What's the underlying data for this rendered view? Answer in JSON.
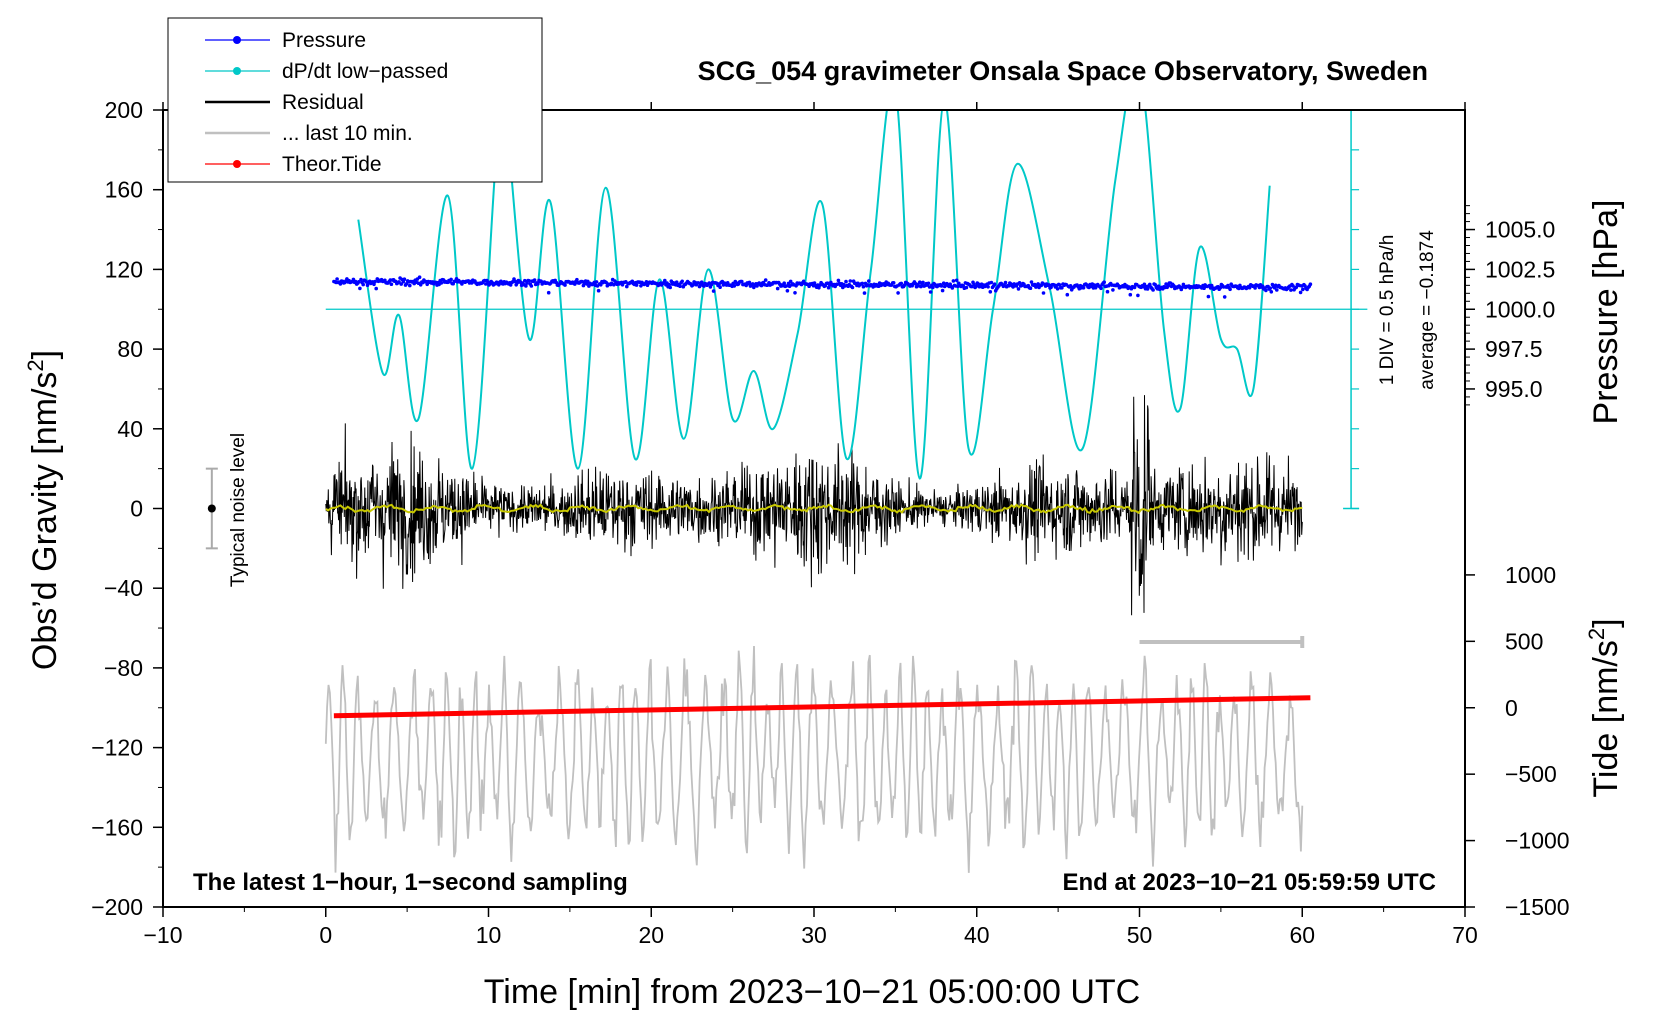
{
  "chart_data": {
    "type": "line",
    "title": "SCG_054 gravimeter Onsala Space Observatory, Sweden",
    "xlabel": "Time [min] from 2023−10−21 05:00:00 UTC",
    "ylabel_left": "Obs’d Gravity [nm/s",
    "ylabel_left_sup": "2",
    "ylabel_left_close": "]",
    "ylabel_right_top": "Pressure [hPa]",
    "ylabel_right_bottom": "Tide [nm/s",
    "ylabel_right_bottom_sup": "2",
    "ylabel_right_bottom_close": "]",
    "xlim": [
      -10,
      70
    ],
    "ylim": [
      -200,
      200
    ],
    "x_ticks": [
      {
        "v": -10,
        "label": "−10"
      },
      {
        "v": 0,
        "label": "0"
      },
      {
        "v": 10,
        "label": "10"
      },
      {
        "v": 20,
        "label": "20"
      },
      {
        "v": 30,
        "label": "30"
      },
      {
        "v": 40,
        "label": "40"
      },
      {
        "v": 50,
        "label": "50"
      },
      {
        "v": 60,
        "label": "60"
      },
      {
        "v": 70,
        "label": "70"
      }
    ],
    "y_ticks": [
      {
        "v": 200,
        "label": "200"
      },
      {
        "v": 160,
        "label": "160"
      },
      {
        "v": 120,
        "label": "120"
      },
      {
        "v": 80,
        "label": "80"
      },
      {
        "v": 40,
        "label": "40"
      },
      {
        "v": 0,
        "label": "0"
      },
      {
        "v": -40,
        "label": "−40"
      },
      {
        "v": -80,
        "label": "−80"
      },
      {
        "v": -120,
        "label": "−120"
      },
      {
        "v": -160,
        "label": "−160"
      },
      {
        "v": -200,
        "label": "−200"
      }
    ],
    "pressure_axis": {
      "ticks": [
        {
          "v": 1005.0,
          "label": "1005.0"
        },
        {
          "v": 1002.5,
          "label": "1002.5"
        },
        {
          "v": 1000.0,
          "label": "1000.0"
        },
        {
          "v": 997.5,
          "label": "997.5"
        },
        {
          "v": 995.0,
          "label": "995.0"
        }
      ],
      "gravity_at_1000": 100,
      "gravity_per_hpa": 8
    },
    "tide_axis": {
      "ticks": [
        {
          "v": 1000,
          "label": "1000"
        },
        {
          "v": 500,
          "label": "500"
        },
        {
          "v": 0,
          "label": "0"
        },
        {
          "v": -500,
          "label": "−500"
        },
        {
          "v": -1000,
          "label": "−1000"
        },
        {
          "v": -1500,
          "label": "−1500"
        }
      ],
      "gravity_at_0": -100,
      "gravity_per_unit": 0.06667
    },
    "legend": [
      {
        "label": "Pressure",
        "color": "#0000ff",
        "marker": true
      },
      {
        "label": "dP/dt low−passed",
        "color": "#00c8c8",
        "marker": true
      },
      {
        "label": "Residual",
        "color": "#000000",
        "marker": false
      },
      {
        "label": "... last 10 min.",
        "color": "#c0c0c0",
        "marker": false
      },
      {
        "label": "Theor.Tide",
        "color": "#ff0000",
        "marker": true
      }
    ],
    "series": [
      {
        "name": "Pressure",
        "color": "#0000ff",
        "x_range": [
          0.5,
          60.5
        ],
        "y_start": 114,
        "y_end": 111,
        "note": "approx 1001.5 hPa, slowly decreasing"
      },
      {
        "name": "dP/dt low-passed",
        "color": "#00c8c8",
        "x": [
          2,
          3.5,
          4.5,
          5.7,
          7.5,
          9.0,
          10.5,
          11.0,
          12.5,
          13.8,
          15.5,
          17.2,
          19.0,
          20.5,
          22.0,
          23.5,
          25.0,
          26.3,
          27.5,
          29.0,
          30.5,
          32.0,
          33.5,
          35.0,
          36.5,
          38.0,
          39.5,
          41.0,
          42.5,
          44.5,
          46.5,
          48.5,
          50.0,
          51.5,
          52.5,
          53.7,
          55.0,
          56.0,
          57.0,
          58.0
        ],
        "y": [
          145,
          68,
          97,
          45,
          157,
          20,
          180,
          200,
          85,
          154,
          20,
          161,
          25,
          115,
          35,
          120,
          45,
          69,
          40,
          88,
          153,
          25,
          120,
          210,
          15,
          205,
          30,
          100,
          173,
          110,
          30,
          164,
          220,
          90,
          50,
          131,
          85,
          80,
          60,
          162
        ]
      },
      {
        "name": "Residual",
        "color": "#000000",
        "x_range": [
          0,
          60
        ],
        "amplitude_typical": 40,
        "amplitude_max": 75
      },
      {
        "name": "Residual (smoothed)",
        "color": "#c8c800",
        "x_range": [
          0,
          60
        ],
        "y_approx": 0
      },
      {
        "name": "... last 10 min.",
        "color": "#c0c0c0",
        "x_range": [
          0,
          60
        ],
        "center": -125,
        "amplitude": 50
      },
      {
        "name": "Theor.Tide",
        "color": "#ff0000",
        "x": [
          0.5,
          60.5
        ],
        "y": [
          -104,
          -95
        ]
      }
    ],
    "zero_line_pressure": {
      "value": 1000.0,
      "x_range": [
        0,
        64
      ]
    },
    "scale_bar": {
      "label_1": "1 DIV = 0.5 hPa/h",
      "label_2": "average = −0.1874",
      "x": 63,
      "y_range": [
        0,
        200
      ],
      "div": 20
    },
    "noise_bar": {
      "label": "Typical noise level",
      "x": -7,
      "y_range": [
        -20,
        20
      ]
    },
    "window_bar": {
      "x_range": [
        50,
        60
      ],
      "y": -67
    },
    "annotations": {
      "left": "The latest 1−hour, 1−second sampling",
      "right": "End at 2023−10−21 05:59:59 UTC"
    }
  }
}
